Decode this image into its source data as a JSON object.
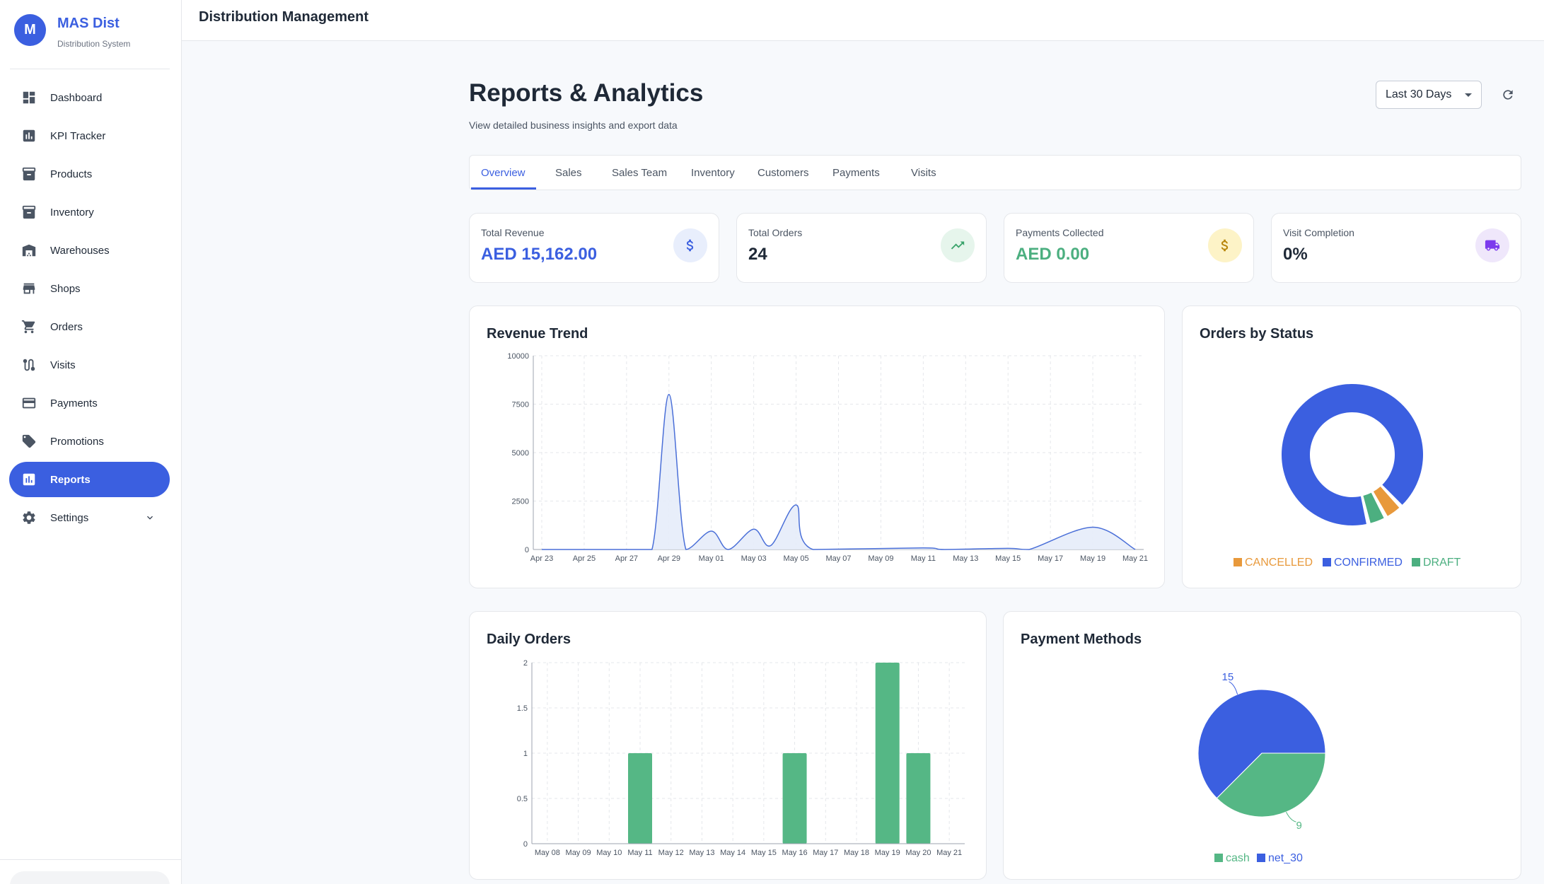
{
  "brand": {
    "initial": "M",
    "title": "MAS Dist",
    "subtitle": "Distribution System"
  },
  "sidebar": {
    "items": [
      {
        "label": "Dashboard",
        "icon": "dashboard-icon"
      },
      {
        "label": "KPI Tracker",
        "icon": "bar-chart-icon"
      },
      {
        "label": "Products",
        "icon": "archive-icon"
      },
      {
        "label": "Inventory",
        "icon": "archive-icon"
      },
      {
        "label": "Warehouses",
        "icon": "warehouse-icon"
      },
      {
        "label": "Shops",
        "icon": "store-icon"
      },
      {
        "label": "Orders",
        "icon": "cart-icon"
      },
      {
        "label": "Visits",
        "icon": "route-icon"
      },
      {
        "label": "Payments",
        "icon": "credit-card-icon"
      },
      {
        "label": "Promotions",
        "icon": "tag-icon"
      },
      {
        "label": "Reports",
        "icon": "report-icon",
        "active": true
      },
      {
        "label": "Settings",
        "icon": "gear-icon"
      }
    ]
  },
  "topbar": {
    "title": "Distribution Management"
  },
  "page": {
    "title": "Reports & Analytics",
    "subtitle": "View detailed business insights and export data",
    "range": "Last 30 Days"
  },
  "tabs": [
    "Overview",
    "Sales",
    "Sales Team",
    "Inventory",
    "Customers",
    "Payments",
    "Visits"
  ],
  "stats": [
    {
      "label": "Total Revenue",
      "value": "AED 15,162.00",
      "color": "#3b5fe0",
      "icon": "dollar-icon"
    },
    {
      "label": "Total Orders",
      "value": "24",
      "color": "#1f2937",
      "icon": "trending-up-icon"
    },
    {
      "label": "Payments Collected",
      "value": "AED 0.00",
      "color": "#4caf80",
      "icon": "dollar-icon"
    },
    {
      "label": "Visit Completion",
      "value": "0%",
      "color": "#1f2937",
      "icon": "truck-icon"
    }
  ],
  "panels": {
    "revenue": "Revenue Trend",
    "status": "Orders by Status",
    "daily": "Daily Orders",
    "payments": "Payment Methods"
  },
  "chart_data": [
    {
      "type": "area",
      "title": "Revenue Trend",
      "x_ticks": [
        "Apr 23",
        "Apr 25",
        "Apr 27",
        "Apr 29",
        "May 01",
        "May 03",
        "May 05",
        "May 07",
        "May 09",
        "May 11",
        "May 13",
        "May 15",
        "May 17",
        "May 19",
        "May 21"
      ],
      "y_ticks": [
        0,
        2500,
        5000,
        7500,
        10000
      ],
      "ylim": [
        0,
        10000
      ],
      "points": [
        {
          "x": 0,
          "y": 0
        },
        {
          "x": 4,
          "y": 0
        },
        {
          "x": 5.2,
          "y": 0
        },
        {
          "x": 6,
          "y": 8000
        },
        {
          "x": 6.8,
          "y": 0
        },
        {
          "x": 8,
          "y": 950
        },
        {
          "x": 8.8,
          "y": 0
        },
        {
          "x": 10,
          "y": 1050
        },
        {
          "x": 10.8,
          "y": 200
        },
        {
          "x": 12,
          "y": 2300
        },
        {
          "x": 12.8,
          "y": 0
        },
        {
          "x": 18,
          "y": 80
        },
        {
          "x": 19,
          "y": 0
        },
        {
          "x": 22,
          "y": 60
        },
        {
          "x": 23,
          "y": 0
        },
        {
          "x": 26,
          "y": 1150
        },
        {
          "x": 28,
          "y": 0
        }
      ],
      "color": "#4a6fd8"
    },
    {
      "type": "pie",
      "title": "Orders by Status",
      "donut": true,
      "slices": [
        {
          "label": "CONFIRMED",
          "value": 22,
          "color": "#3b5fe0"
        },
        {
          "label": "CANCELLED",
          "value": 1,
          "color": "#e8993b"
        },
        {
          "label": "DRAFT",
          "value": 1,
          "color": "#4caf80"
        }
      ]
    },
    {
      "type": "bar",
      "title": "Daily Orders",
      "categories": [
        "May 08",
        "May 09",
        "May 10",
        "May 11",
        "May 12",
        "May 13",
        "May 14",
        "May 15",
        "May 16",
        "May 17",
        "May 18",
        "May 19",
        "May 20",
        "May 21"
      ],
      "values": [
        0,
        0,
        0,
        1,
        0,
        0,
        0,
        0,
        1,
        0,
        0,
        2,
        1,
        0
      ],
      "y_ticks": [
        0,
        0.5,
        1,
        1.5,
        2
      ],
      "ylim": [
        0,
        2
      ],
      "color": "#55b785"
    },
    {
      "type": "pie",
      "title": "Payment Methods",
      "slices": [
        {
          "label": "cash",
          "value": 9,
          "color": "#55b785"
        },
        {
          "label": "net_30",
          "value": 15,
          "color": "#3b5fe0"
        }
      ]
    }
  ]
}
